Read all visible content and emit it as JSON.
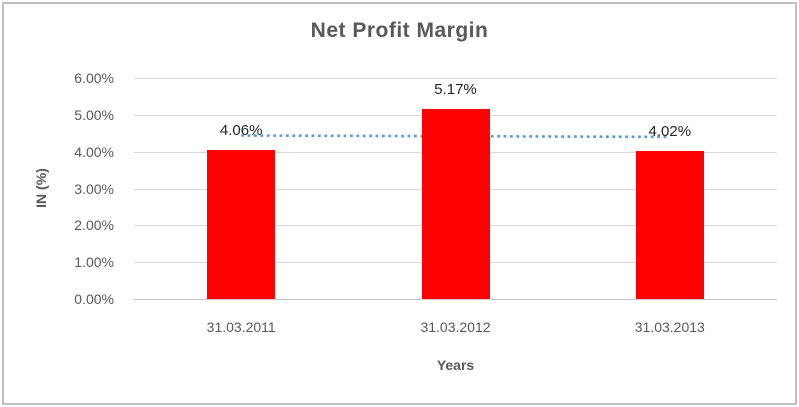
{
  "chart": {
    "title": "Net Profit Margin",
    "x_axis_title": "Years",
    "y_axis_title": "IN (%)"
  },
  "chart_data": {
    "type": "bar",
    "title": "Net Profit Margin",
    "xlabel": "Years",
    "ylabel": "IN (%)",
    "categories": [
      "31.03.2011",
      "31.03.2012",
      "31.03.2013"
    ],
    "series": [
      {
        "name": "Net Profit Margin",
        "values": [
          4.06,
          5.17,
          4.02
        ]
      }
    ],
    "data_labels": [
      "4.06%",
      "5.17%",
      "4.02%"
    ],
    "y_ticks": [
      "6.00%",
      "5.00%",
      "4.00%",
      "3.00%",
      "2.00%",
      "1.00%",
      "0.00%"
    ],
    "ylim": [
      0,
      6
    ],
    "y_tick_step": 1,
    "grid": true,
    "legend": "none",
    "bar_color": "#FF0000",
    "trendline": {
      "type": "linear",
      "style": "dotted",
      "color": "#5B9BD5",
      "start_value": 4.44,
      "end_value": 4.4
    },
    "colors": {
      "title_text": "#595959",
      "axis_text": "#595959",
      "data_label_text": "#262626",
      "gridline": "#D9D9D9",
      "frame_border": "#C0C0C0"
    }
  }
}
